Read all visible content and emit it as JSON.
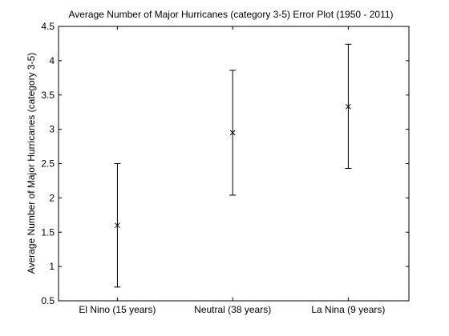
{
  "chart_data": {
    "type": "errorbar",
    "title": "Average Number of Major Hurricanes (category 3-5) Error Plot (1950 - 2011)",
    "xlabel": "",
    "ylabel": "Average Number of Major Hurricanes (category 3-5)",
    "categories": [
      "El Nino (15 years)",
      "Neutral (38 years)",
      "La Nina (9 years)"
    ],
    "series": [
      {
        "mean": [
          1.6,
          2.95,
          3.33
        ],
        "lower": [
          0.7,
          2.04,
          2.43
        ],
        "upper": [
          2.5,
          3.86,
          4.24
        ]
      }
    ],
    "ylim": [
      0.5,
      4.5
    ],
    "yticks": [
      0.5,
      1,
      1.5,
      2,
      2.5,
      3,
      3.5,
      4,
      4.5
    ],
    "ytick_labels": [
      "0.5",
      "1",
      "1.5",
      "2",
      "2.5",
      "3",
      "3.5",
      "4",
      "4.5"
    ],
    "grid": false,
    "marker": "x",
    "colors": {
      "axes": "#000000",
      "background": "#ffffff",
      "errorbar": "#000000"
    }
  }
}
